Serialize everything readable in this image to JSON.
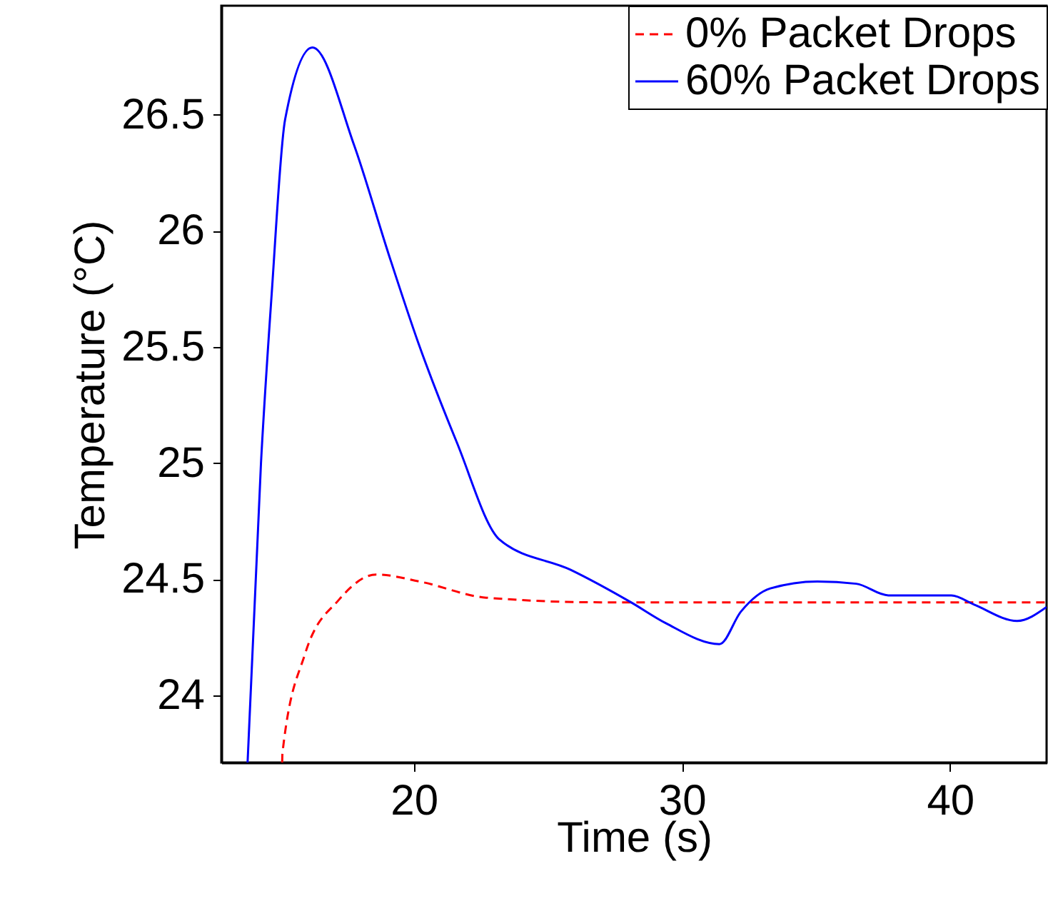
{
  "chart_data": {
    "type": "line",
    "xlabel": "Time (s)",
    "ylabel": "Temperature (°C)",
    "xlim": [
      12.82,
      43.6
    ],
    "xticks": [
      20,
      30,
      40
    ],
    "ylim": [
      23.71,
      26.97
    ],
    "yticks": [
      24,
      24.5,
      25,
      25.5,
      26,
      26.5
    ],
    "grid": false,
    "legend": "top right",
    "marker": "none",
    "series": [
      {
        "name": "0%   Packet Drops",
        "color": "#ff0000",
        "line_style": "dashed",
        "x": [
          15.09,
          15.1,
          15.95,
          17.2,
          18.6,
          20.2,
          22.7,
          27,
          35,
          43.6
        ],
        "values": [
          23.71,
          23.75,
          24.18,
          24.41,
          24.52,
          24.49,
          24.42,
          24.4,
          24.4,
          24.4
        ]
      },
      {
        "name": "60% Packet Drops",
        "color": "#0000ff",
        "line_style": "solid",
        "x": [
          13.8,
          14.3,
          14.7,
          15.2,
          16.22,
          17.77,
          19.06,
          20.16,
          21.6,
          23.2,
          25.85,
          28.1,
          29.4,
          31.4,
          32.2,
          33.3,
          35.05,
          36.5,
          37.7,
          39.3,
          40.05,
          40.9,
          42.5,
          43.6
        ],
        "values": [
          23.71,
          25.0,
          25.73,
          26.48,
          26.79,
          26.37,
          25.9,
          25.52,
          25.09,
          24.67,
          24.54,
          24.4,
          24.31,
          24.22,
          24.36,
          24.46,
          24.49,
          24.48,
          24.43,
          24.43,
          24.43,
          24.39,
          24.32,
          24.38
        ]
      }
    ]
  }
}
